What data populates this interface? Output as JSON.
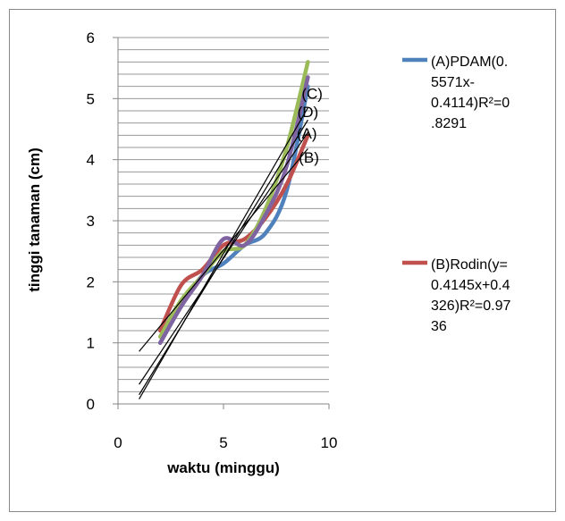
{
  "chart_data": {
    "type": "line",
    "xlabel": "waktu (minggu)",
    "ylabel": "tinggi tanaman (cm)",
    "xlim": [
      0,
      10
    ],
    "ylim": [
      0,
      6
    ],
    "xticks": [
      0,
      5,
      10
    ],
    "yticks": [
      0,
      1,
      2,
      3,
      4,
      5,
      6
    ],
    "grid": "horizontal minor lines every 0.2",
    "series": [
      {
        "name": "(A)PDAM(0.5571x-0.4114)R²=0.8291",
        "color": "#4f81bd",
        "x": [
          2,
          3,
          4,
          5,
          6,
          7,
          8,
          9
        ],
        "y": [
          1.0,
          1.6,
          2.1,
          2.3,
          2.6,
          2.8,
          3.5,
          5.2
        ],
        "legend_lines": [
          "(A)PDAM(0.",
          "5571x-",
          "0.4114)R²=0",
          ".8291"
        ]
      },
      {
        "name": "(B)Rodin(y=0.4145x+0.4326)R²=0.9736",
        "color": "#c0504d",
        "x": [
          2,
          3,
          4,
          5,
          6,
          7,
          8,
          9
        ],
        "y": [
          1.2,
          1.95,
          2.2,
          2.6,
          2.7,
          3.05,
          3.6,
          4.4
        ],
        "legend_lines": [
          "(B)Rodin(y=",
          "0.4145x+0.4",
          "326)R²=0.97",
          "36"
        ]
      },
      {
        "name": "(C)",
        "color": "#9bbb59",
        "x": [
          2,
          3,
          4,
          5,
          6,
          7,
          8,
          9
        ],
        "y": [
          1.1,
          1.7,
          2.1,
          2.5,
          2.6,
          3.2,
          4.2,
          5.6
        ]
      },
      {
        "name": "(D)",
        "color": "#8064a2",
        "x": [
          2,
          3,
          4,
          5,
          6,
          7,
          8,
          9
        ],
        "y": [
          1.0,
          1.6,
          2.1,
          2.7,
          2.6,
          3.1,
          3.9,
          5.35
        ]
      }
    ],
    "trendlines": [
      {
        "x": [
          1,
          9
        ],
        "y": [
          0.86,
          4.18
        ]
      },
      {
        "x": [
          1,
          9
        ],
        "y": [
          0.32,
          4.45
        ]
      },
      {
        "x": [
          1,
          9
        ],
        "y": [
          0.15,
          4.65
        ]
      },
      {
        "x": [
          1,
          9
        ],
        "y": [
          0.08,
          4.85
        ]
      }
    ],
    "annotations": [
      {
        "text": "(C)",
        "x": 9.2,
        "y": 5.0
      },
      {
        "text": "(D)",
        "x": 9.0,
        "y": 4.7
      },
      {
        "text": "(A)",
        "x": 8.95,
        "y": 4.35
      },
      {
        "text": "(B)",
        "x": 9.05,
        "y": 3.95
      }
    ],
    "legend": "right"
  }
}
